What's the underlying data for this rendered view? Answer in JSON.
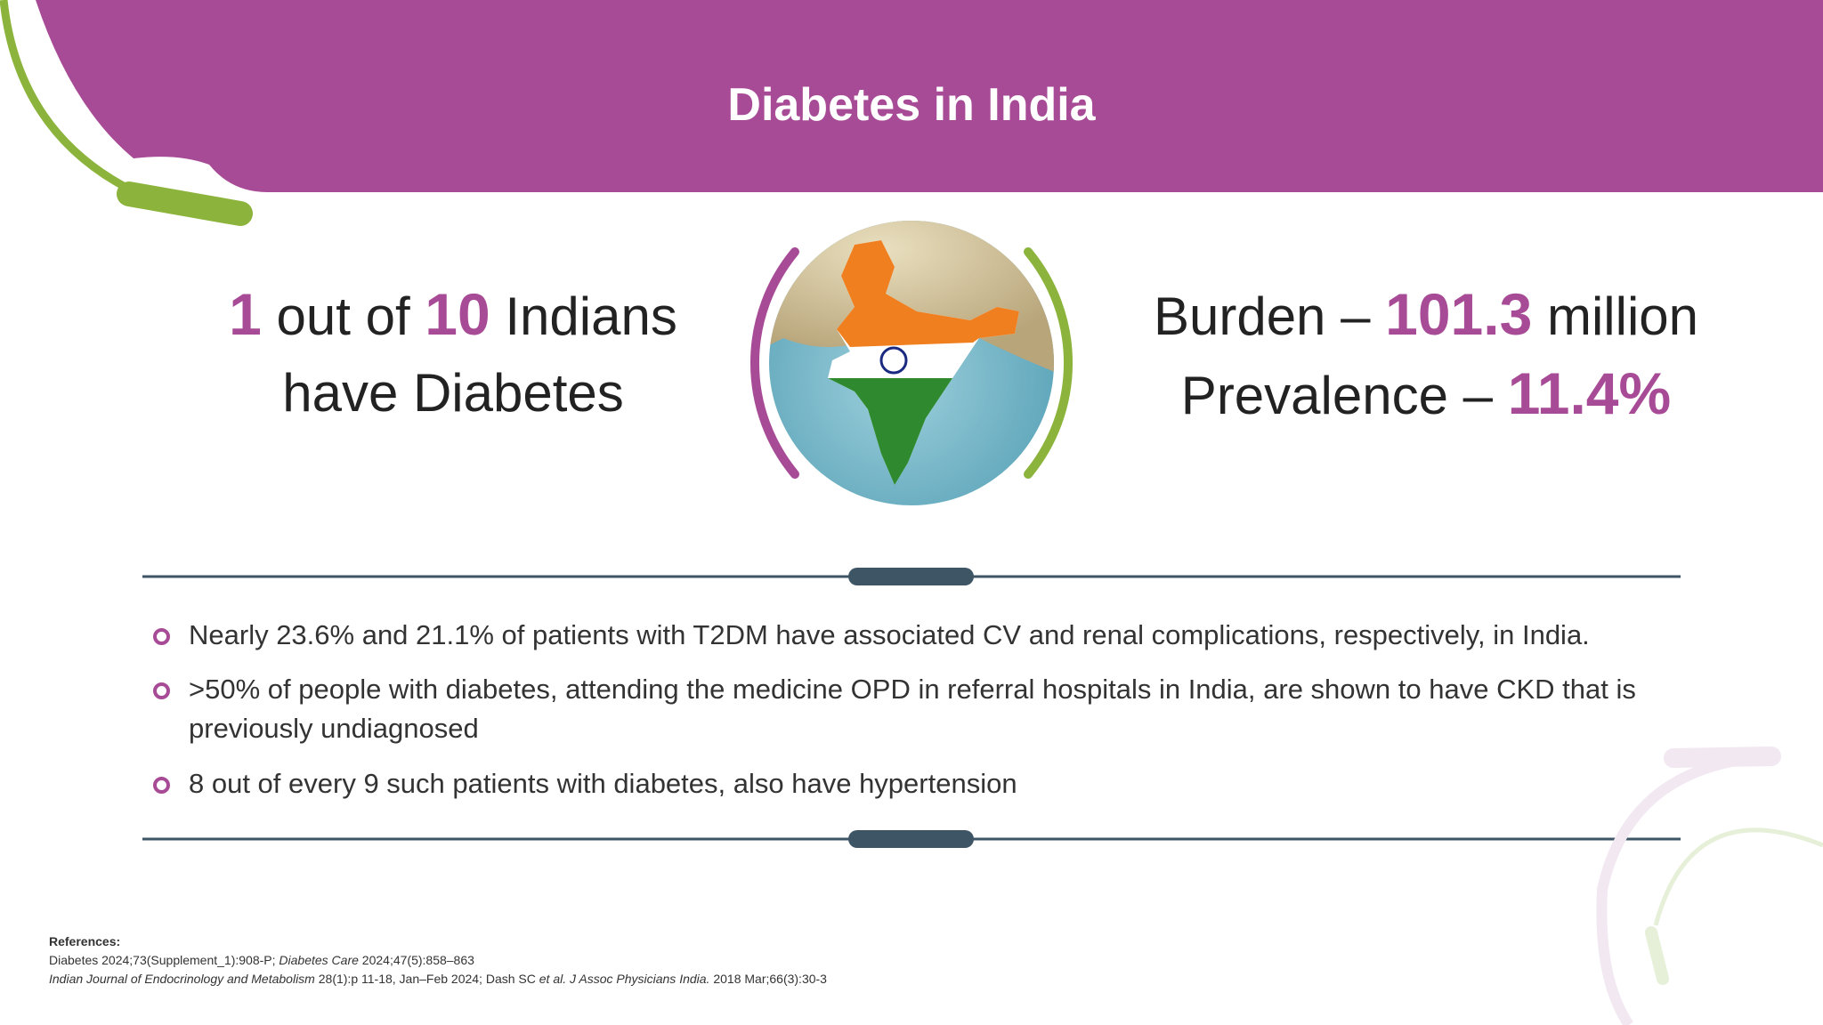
{
  "header": {
    "title": "Diabetes in India"
  },
  "stat_left": {
    "line1": [
      "1",
      "out of",
      "10",
      "Indians"
    ],
    "line2": "have Diabetes"
  },
  "stat_right": {
    "burden_label": "Burden –",
    "burden_value": "101.3",
    "burden_unit": "million",
    "prevalence_label": "Prevalence –",
    "prevalence_value": "11.4%"
  },
  "bullets": [
    "Nearly 23.6% and 21.1% of patients with T2DM have associated CV and renal complications, respectively, in India.",
    ">50% of people with diabetes, attending the medicine OPD in referral hospitals in India, are shown to have CKD that is previously undiagnosed",
    "8 out of every 9 such patients with diabetes, also have hypertension"
  ],
  "references": {
    "heading": "References:",
    "line1": [
      "Diabetes 2024;73(Supplement_1):908-P;",
      "Diabetes Care",
      "2024;47(5):858–863"
    ],
    "line2": [
      "Indian Journal of Endocrinology and Metabolism",
      "28(1):p 11-18, Jan–Feb 2024; Dash SC",
      "et al. J Assoc Physicians India.",
      "2018 Mar;66(3):30-3"
    ]
  }
}
